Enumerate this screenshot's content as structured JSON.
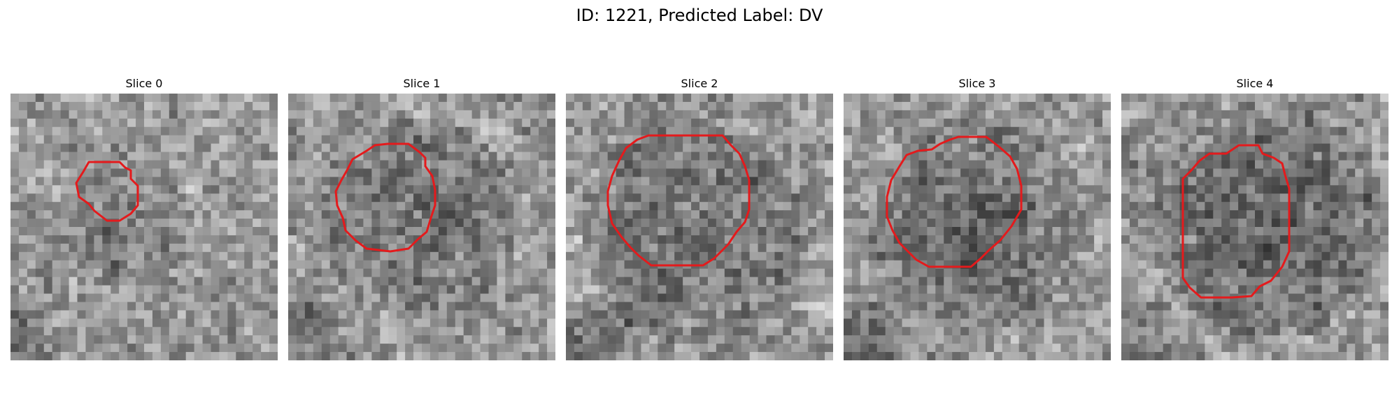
{
  "figure": {
    "title": "ID: 1221, Predicted Label: DV"
  },
  "panels": [
    {
      "title": "Slice 0",
      "seed": 11,
      "dark_center": [
        0.47,
        0.48
      ],
      "dark_radius": 0.2,
      "dark_strength": 0.18
    },
    {
      "title": "Slice 1",
      "seed": 23,
      "dark_center": [
        0.48,
        0.47
      ],
      "dark_radius": 0.34,
      "dark_strength": 0.25
    },
    {
      "title": "Slice 2",
      "seed": 37,
      "dark_center": [
        0.47,
        0.52
      ],
      "dark_radius": 0.38,
      "dark_strength": 0.3
    },
    {
      "title": "Slice 3",
      "seed": 41,
      "dark_center": [
        0.5,
        0.5
      ],
      "dark_radius": 0.36,
      "dark_strength": 0.32
    },
    {
      "title": "Slice 4",
      "seed": 53,
      "dark_center": [
        0.55,
        0.48
      ],
      "dark_radius": 0.4,
      "dark_strength": 0.35
    }
  ],
  "colors": {
    "contour": "#e41a1c"
  }
}
